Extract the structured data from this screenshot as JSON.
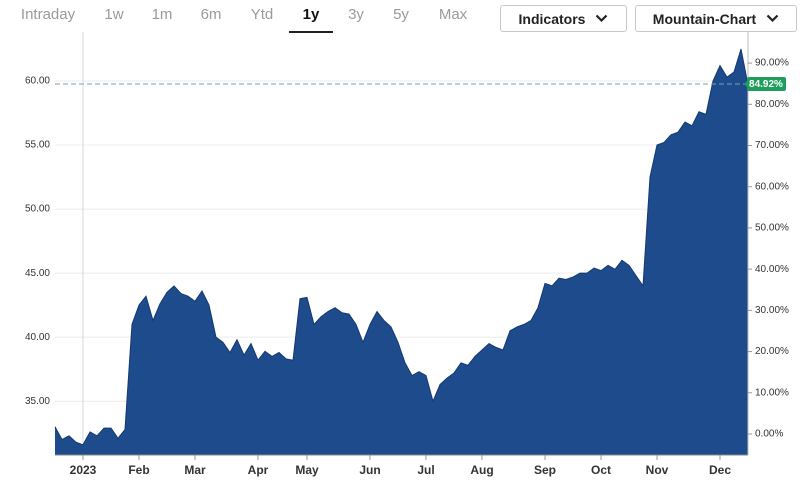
{
  "toolbar": {
    "ranges": [
      {
        "label": "Intraday",
        "selected": false
      },
      {
        "label": "1w",
        "selected": false
      },
      {
        "label": "1m",
        "selected": false
      },
      {
        "label": "6m",
        "selected": false
      },
      {
        "label": "Ytd",
        "selected": false
      },
      {
        "label": "1y",
        "selected": true
      },
      {
        "label": "3y",
        "selected": false
      },
      {
        "label": "5y",
        "selected": false
      },
      {
        "label": "Max",
        "selected": false
      }
    ],
    "buttons": [
      "Indicators",
      "Mountain-Chart"
    ]
  },
  "chart_data": {
    "type": "area",
    "color": "#1d4b8c",
    "categories": [
      null,
      null,
      null,
      null,
      "2023",
      null,
      null,
      null,
      null,
      null,
      null,
      null,
      "Feb",
      null,
      null,
      null,
      null,
      null,
      null,
      null,
      "Mar",
      null,
      null,
      null,
      null,
      null,
      null,
      null,
      null,
      "Apr",
      null,
      null,
      null,
      null,
      null,
      null,
      "May",
      null,
      null,
      null,
      null,
      null,
      null,
      null,
      null,
      "Jun",
      null,
      null,
      null,
      null,
      null,
      null,
      null,
      "Jul",
      null,
      null,
      null,
      null,
      null,
      null,
      null,
      "Aug",
      null,
      null,
      null,
      null,
      null,
      null,
      null,
      null,
      "Sep",
      null,
      null,
      null,
      null,
      null,
      null,
      null,
      "Oct",
      null,
      null,
      null,
      null,
      null,
      null,
      null,
      "Nov",
      null,
      null,
      null,
      null,
      null,
      null,
      null,
      null,
      "Dec",
      null,
      null,
      null,
      null
    ],
    "values": [
      33.0,
      32.0,
      32.3,
      31.8,
      31.6,
      32.6,
      32.3,
      32.9,
      32.9,
      32.1,
      32.8,
      41.0,
      42.5,
      43.2,
      41.3,
      42.6,
      43.5,
      44.0,
      43.4,
      43.2,
      42.8,
      43.6,
      42.5,
      40.0,
      39.6,
      38.8,
      39.8,
      38.6,
      39.5,
      38.2,
      38.9,
      38.5,
      38.8,
      38.3,
      38.2,
      43.0,
      43.1,
      41.0,
      41.6,
      42.0,
      42.3,
      41.9,
      41.8,
      41.0,
      39.6,
      41.0,
      42.0,
      41.3,
      40.8,
      39.6,
      38.0,
      37.0,
      37.3,
      37.0,
      35.0,
      36.3,
      36.8,
      37.2,
      38.0,
      37.8,
      38.5,
      39.0,
      39.5,
      39.2,
      39.0,
      40.5,
      40.8,
      41.0,
      41.3,
      42.3,
      44.2,
      44.0,
      44.6,
      44.5,
      44.7,
      45.0,
      45.0,
      45.4,
      45.2,
      45.6,
      45.3,
      46.0,
      45.6,
      44.8,
      44.0,
      52.5,
      55.0,
      55.2,
      55.8,
      56.0,
      56.8,
      56.5,
      57.6,
      57.4,
      60.0,
      61.2,
      60.3,
      60.7,
      62.5,
      59.7
    ],
    "ylim": [
      30.8,
      63.2
    ],
    "yticks": [
      {
        "value": 35,
        "label": "35.00"
      },
      {
        "value": 40,
        "label": "40.00"
      },
      {
        "value": 45,
        "label": "45.00"
      },
      {
        "value": 50,
        "label": "50.00"
      },
      {
        "value": 55,
        "label": "55.00"
      },
      {
        "value": 60,
        "label": "60.00"
      }
    ],
    "y2lim": [
      -5.1,
      95.6
    ],
    "y2ticks": [
      {
        "value": 0,
        "label": "0.00%"
      },
      {
        "value": 10,
        "label": "10.00%"
      },
      {
        "value": 20,
        "label": "20.00%"
      },
      {
        "value": 30,
        "label": "30.00%"
      },
      {
        "value": 40,
        "label": "40.00%"
      },
      {
        "value": 50,
        "label": "50.00%"
      },
      {
        "value": 60,
        "label": "60.00%"
      },
      {
        "value": 70,
        "label": "70.00%"
      },
      {
        "value": 80,
        "label": "80.00%"
      },
      {
        "value": 90,
        "label": "90.00%"
      }
    ],
    "grid": true,
    "last_value": {
      "value": 84.92,
      "label": "84.92%",
      "axis": "y2",
      "color": "#1e9e5a"
    }
  }
}
